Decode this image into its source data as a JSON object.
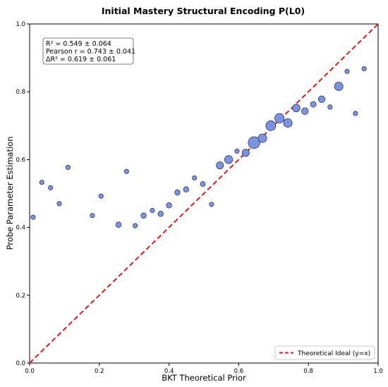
{
  "chart_data": {
    "type": "scatter",
    "title": "Initial Mastery Structural Encoding P(L0)",
    "xlabel": "BKT Theoretical Prior",
    "ylabel": "Probe Parameter Estimation",
    "xlim": [
      0,
      1
    ],
    "ylim": [
      0,
      1
    ],
    "xticks": [
      "0.0",
      "0.2",
      "0.4",
      "0.6",
      "0.8",
      "1.0"
    ],
    "yticks": [
      "0.0",
      "0.2",
      "0.4",
      "0.6",
      "0.8",
      "1.0"
    ],
    "grid": false,
    "point_color": "#7b93e0",
    "point_edge": "#1f2a55",
    "ideal_line_color": "#e01a1a",
    "stats": {
      "line1": "R² = 0.549 ± 0.064",
      "line2": "Pearson r = 0.743 ± 0.041",
      "line3": "ΔR² = 0.619 ± 0.061"
    },
    "legend": {
      "placement": "bottom-right",
      "entries": [
        "Theoretical Ideal (y=x)"
      ]
    },
    "points": [
      {
        "x": 0.01,
        "y": 0.43,
        "s": 1
      },
      {
        "x": 0.035,
        "y": 0.533,
        "s": 1
      },
      {
        "x": 0.06,
        "y": 0.517,
        "s": 1
      },
      {
        "x": 0.085,
        "y": 0.47,
        "s": 1
      },
      {
        "x": 0.11,
        "y": 0.577,
        "s": 1
      },
      {
        "x": 0.18,
        "y": 0.435,
        "s": 1
      },
      {
        "x": 0.205,
        "y": 0.492,
        "s": 1
      },
      {
        "x": 0.255,
        "y": 0.408,
        "s": 1.2
      },
      {
        "x": 0.278,
        "y": 0.565,
        "s": 1
      },
      {
        "x": 0.303,
        "y": 0.405,
        "s": 1
      },
      {
        "x": 0.327,
        "y": 0.435,
        "s": 1.2
      },
      {
        "x": 0.352,
        "y": 0.45,
        "s": 1
      },
      {
        "x": 0.376,
        "y": 0.44,
        "s": 1.2
      },
      {
        "x": 0.4,
        "y": 0.465,
        "s": 1.2
      },
      {
        "x": 0.424,
        "y": 0.503,
        "s": 1.2
      },
      {
        "x": 0.449,
        "y": 0.512,
        "s": 1.2
      },
      {
        "x": 0.473,
        "y": 0.546,
        "s": 1
      },
      {
        "x": 0.497,
        "y": 0.528,
        "s": 1.1
      },
      {
        "x": 0.522,
        "y": 0.468,
        "s": 1
      },
      {
        "x": 0.546,
        "y": 0.583,
        "s": 1.6
      },
      {
        "x": 0.571,
        "y": 0.6,
        "s": 1.8
      },
      {
        "x": 0.595,
        "y": 0.625,
        "s": 1
      },
      {
        "x": 0.62,
        "y": 0.62,
        "s": 1.6
      },
      {
        "x": 0.644,
        "y": 0.65,
        "s": 2.6
      },
      {
        "x": 0.668,
        "y": 0.663,
        "s": 1.9
      },
      {
        "x": 0.692,
        "y": 0.7,
        "s": 2.2
      },
      {
        "x": 0.717,
        "y": 0.722,
        "s": 2.1
      },
      {
        "x": 0.741,
        "y": 0.708,
        "s": 1.9
      },
      {
        "x": 0.765,
        "y": 0.752,
        "s": 1.7
      },
      {
        "x": 0.79,
        "y": 0.743,
        "s": 1.5
      },
      {
        "x": 0.814,
        "y": 0.763,
        "s": 1.3
      },
      {
        "x": 0.838,
        "y": 0.778,
        "s": 1.5
      },
      {
        "x": 0.862,
        "y": 0.755,
        "s": 1
      },
      {
        "x": 0.887,
        "y": 0.816,
        "s": 1.9
      },
      {
        "x": 0.911,
        "y": 0.86,
        "s": 1
      },
      {
        "x": 0.935,
        "y": 0.736,
        "s": 1
      },
      {
        "x": 0.96,
        "y": 0.868,
        "s": 1
      }
    ]
  }
}
